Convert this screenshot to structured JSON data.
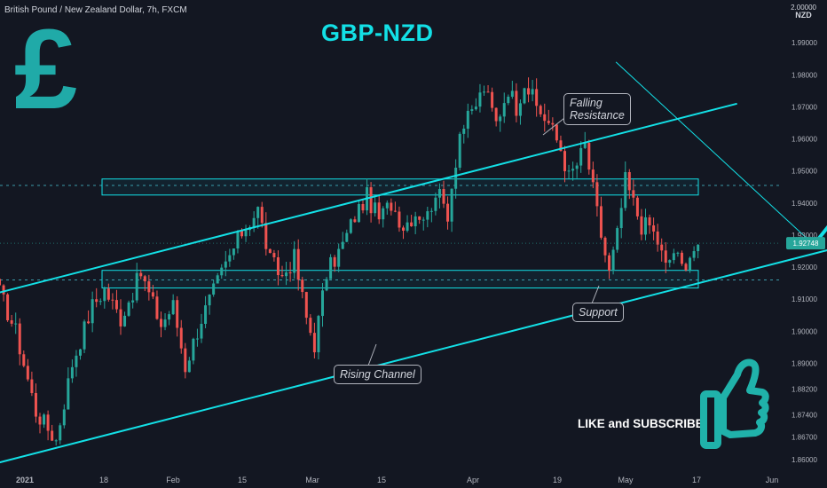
{
  "header": {
    "instrument": "British Pound / New Zealand Dollar, 7h, FXCM"
  },
  "title": "GBP-NZD",
  "symbol": {
    "top_value": "2.00000",
    "badge": "NZD"
  },
  "price_tag": "1.92748",
  "annotations": {
    "resistance": [
      "Falling",
      "Resistance"
    ],
    "support": "Support",
    "channel": "Rising Channel",
    "cta": "LIKE and SUBSCRIBE"
  },
  "icons": [
    "pound-sign-icon",
    "thumbs-up-icon"
  ],
  "colors": {
    "bull": "#26a69a",
    "bear": "#ef5350",
    "accent": "#13e0e6",
    "bg": "#131722"
  },
  "chart_data": {
    "type": "candlestick",
    "ylim": [
      1.855,
      2.0
    ],
    "y_ticks": [
      1.99,
      1.98,
      1.97,
      1.96,
      1.95,
      1.94,
      1.93,
      1.92,
      1.91,
      1.9,
      1.89,
      1.882,
      1.874,
      1.867,
      1.86
    ],
    "y_tick_labels": [
      "1.99000",
      "1.98000",
      "1.97000",
      "1.96000",
      "1.95000",
      "1.94000",
      "1.93000",
      "1.92000",
      "1.91000",
      "1.90000",
      "1.89000",
      "1.88200",
      "1.87400",
      "1.86700",
      "1.86000"
    ],
    "x_tick_labels": [
      "2021",
      "18",
      "Feb",
      "15",
      "Mar",
      "15",
      "Apr",
      "19",
      "May",
      "17",
      "Jun"
    ],
    "anchors": [
      [
        0,
        1.912
      ],
      [
        4,
        1.9
      ],
      [
        9,
        1.875
      ],
      [
        14,
        1.866
      ],
      [
        18,
        1.89
      ],
      [
        23,
        1.908
      ],
      [
        26,
        1.913
      ],
      [
        30,
        1.904
      ],
      [
        35,
        1.918
      ],
      [
        40,
        1.902
      ],
      [
        43,
        1.908
      ],
      [
        46,
        1.889
      ],
      [
        50,
        1.904
      ],
      [
        55,
        1.918
      ],
      [
        60,
        1.931
      ],
      [
        64,
        1.938
      ],
      [
        67,
        1.922
      ],
      [
        70,
        1.917
      ],
      [
        73,
        1.923
      ],
      [
        76,
        1.904
      ],
      [
        78,
        1.896
      ],
      [
        81,
        1.918
      ],
      [
        85,
        1.927
      ],
      [
        88,
        1.936
      ],
      [
        91,
        1.942
      ],
      [
        94,
        1.935
      ],
      [
        97,
        1.94
      ],
      [
        100,
        1.933
      ],
      [
        103,
        1.937
      ],
      [
        106,
        1.936
      ],
      [
        108,
        1.944
      ],
      [
        111,
        1.937
      ],
      [
        114,
        1.962
      ],
      [
        117,
        1.968
      ],
      [
        120,
        1.976
      ],
      [
        123,
        1.965
      ],
      [
        126,
        1.976
      ],
      [
        128,
        1.97
      ],
      [
        130,
        1.978
      ],
      [
        133,
        1.97
      ],
      [
        136,
        1.965
      ],
      [
        139,
        1.957
      ],
      [
        141,
        1.948
      ],
      [
        143,
        1.952
      ],
      [
        145,
        1.958
      ],
      [
        147,
        1.944
      ],
      [
        149,
        1.93
      ],
      [
        151,
        1.918
      ],
      [
        153,
        1.93
      ],
      [
        155,
        1.947
      ],
      [
        157,
        1.94
      ],
      [
        159,
        1.933
      ],
      [
        161,
        1.933
      ],
      [
        163,
        1.928
      ],
      [
        165,
        1.92
      ],
      [
        167,
        1.925
      ],
      [
        169,
        1.92
      ],
      [
        171,
        1.924
      ],
      [
        173,
        1.927
      ]
    ],
    "current_price": 1.92748,
    "resistance_zone": [
      1.9425,
      1.9475
    ],
    "support_zone": [
      1.9135,
      1.919
    ],
    "channel_upper": [
      [
        0,
        1.912
      ],
      [
        183,
        1.971
      ]
    ],
    "channel_lower": [
      [
        0,
        1.859
      ],
      [
        223,
        1.931
      ]
    ],
    "falling_resistance": [
      [
        153,
        1.984
      ],
      [
        202,
        1.927
      ]
    ],
    "projection_arrow": [
      [
        202,
        1.927
      ],
      [
        213,
        1.945
      ]
    ]
  }
}
